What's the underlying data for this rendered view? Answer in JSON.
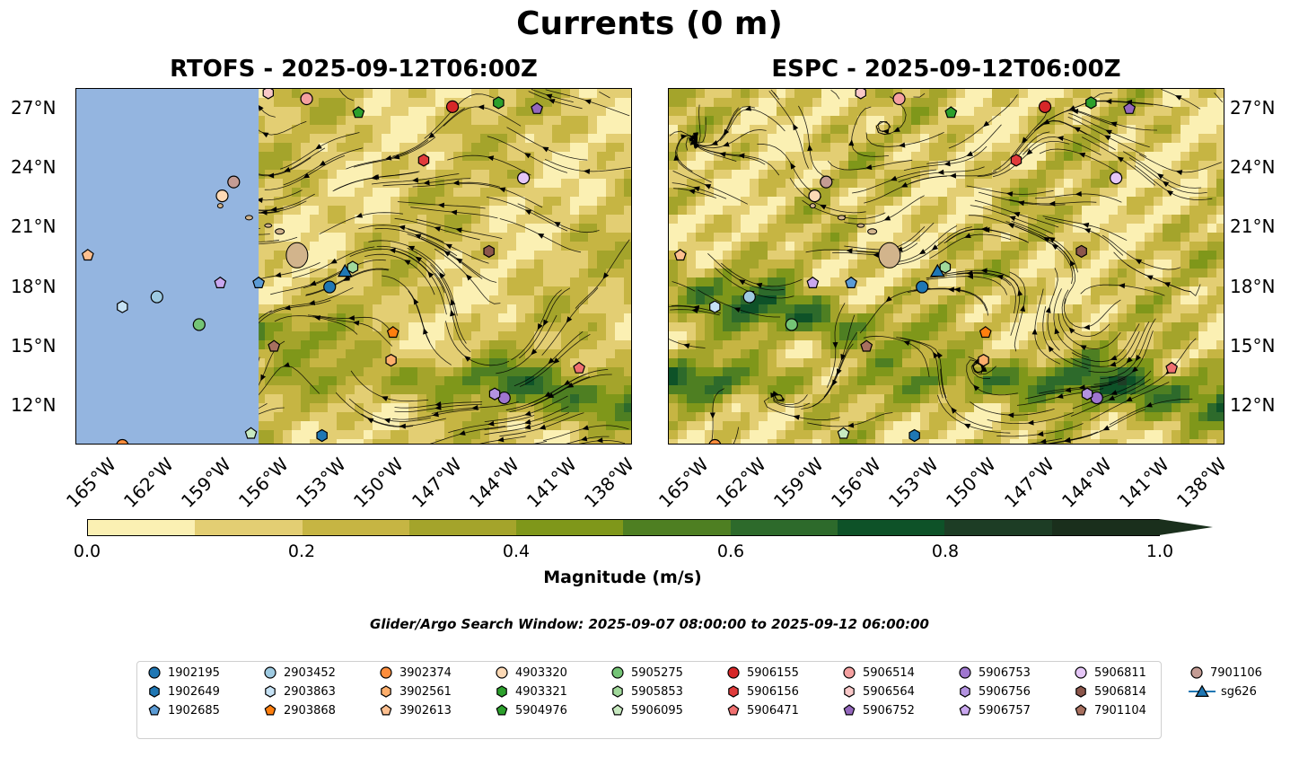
{
  "figure": {
    "suptitle": "Currents (0 m)",
    "window_text": "Glider/Argo Search Window: 2025-09-07 08:00:00 to 2025-09-12 06:00:00"
  },
  "chart_data": [
    {
      "type": "heatmap",
      "title": "RTOFS - 2025-09-12T06:00Z",
      "variable": "Current magnitude with streamlines",
      "lon_range": [
        -167,
        -138
      ],
      "lat_range": [
        10,
        28
      ],
      "xticks": [
        "165°W",
        "162°W",
        "159°W",
        "156°W",
        "153°W",
        "150°W",
        "147°W",
        "144°W",
        "141°W",
        "138°W"
      ],
      "yticks": [
        "27°N",
        "24°N",
        "21°N",
        "18°N",
        "15°N",
        "12°N"
      ],
      "data_extent_west": -157.5
    },
    {
      "type": "heatmap",
      "title": "ESPC - 2025-09-12T06:00Z",
      "variable": "Current magnitude with streamlines",
      "lon_range": [
        -167,
        -138
      ],
      "lat_range": [
        10,
        28
      ],
      "xticks": [
        "165°W",
        "162°W",
        "159°W",
        "156°W",
        "153°W",
        "150°W",
        "147°W",
        "144°W",
        "141°W",
        "138°W"
      ],
      "yticks": [
        "27°N",
        "24°N",
        "21°N",
        "18°N",
        "15°N",
        "12°N"
      ]
    }
  ],
  "colorbar": {
    "label": "Magnitude (m/s)",
    "ticks": [
      "0.0",
      "0.2",
      "0.4",
      "0.6",
      "0.8",
      "1.0"
    ],
    "colors": [
      "#fbf0b3",
      "#e3ce73",
      "#c6b543",
      "#a4a42b",
      "#7f971a",
      "#4e7f22",
      "#2d6a2b",
      "#0e5228",
      "#1d3d25",
      "#1a2f1c"
    ],
    "extend": "max"
  },
  "platforms": [
    {
      "id": "1902195",
      "marker": "circle",
      "color": "#1f77b4",
      "lon": -153.8,
      "lat": 18.0
    },
    {
      "id": "1902649",
      "marker": "hexagon",
      "color": "#1f77b4",
      "lon": -154.2,
      "lat": 10.5
    },
    {
      "id": "1902685",
      "marker": "pentagon",
      "color": "#5b9bd5",
      "lon": -157.5,
      "lat": 18.2
    },
    {
      "id": "2903452",
      "marker": "circle",
      "color": "#9ecae1",
      "lon": -162.8,
      "lat": 17.5
    },
    {
      "id": "2903863",
      "marker": "hexagon",
      "color": "#c6e2f5",
      "lon": -164.6,
      "lat": 17.0
    },
    {
      "id": "2903868",
      "marker": "pentagon",
      "color": "#ff7f0e",
      "lon": -150.5,
      "lat": 15.7
    },
    {
      "id": "3902374",
      "marker": "circle",
      "color": "#fd8d3c",
      "lon": -164.6,
      "lat": 10.0
    },
    {
      "id": "3902561",
      "marker": "hexagon",
      "color": "#fdae6b",
      "lon": -150.6,
      "lat": 14.3
    },
    {
      "id": "3902613",
      "marker": "pentagon",
      "color": "#fdbf8f",
      "lon": -166.4,
      "lat": 19.6
    },
    {
      "id": "4903320",
      "marker": "circle",
      "color": "#fdd9b5",
      "lon": -159.4,
      "lat": 22.6
    },
    {
      "id": "4903321",
      "marker": "hexagon",
      "color": "#2ca02c",
      "lon": -145.0,
      "lat": 27.3
    },
    {
      "id": "5904976",
      "marker": "pentagon",
      "color": "#2ca02c",
      "lon": -152.3,
      "lat": 26.8
    },
    {
      "id": "5905275",
      "marker": "circle",
      "color": "#74c476",
      "lon": -160.6,
      "lat": 16.1
    },
    {
      "id": "5905853",
      "marker": "hexagon",
      "color": "#a1d99b",
      "lon": -152.6,
      "lat": 19.0
    },
    {
      "id": "5906095",
      "marker": "pentagon",
      "color": "#c7e9c0",
      "lon": -157.9,
      "lat": 10.6
    },
    {
      "id": "5906155",
      "marker": "circle",
      "color": "#d62728",
      "lon": -147.4,
      "lat": 27.1
    },
    {
      "id": "5906156",
      "marker": "hexagon",
      "color": "#e03b3b",
      "lon": -148.9,
      "lat": 24.4
    },
    {
      "id": "5906471",
      "marker": "pentagon",
      "color": "#f07070",
      "lon": -140.8,
      "lat": 13.9
    },
    {
      "id": "5906514",
      "marker": "circle",
      "color": "#f4a0a0",
      "lon": -155.0,
      "lat": 27.5
    },
    {
      "id": "5906564",
      "marker": "hexagon",
      "color": "#f9c8c8",
      "lon": -157.0,
      "lat": 27.8
    },
    {
      "id": "5906752",
      "marker": "pentagon",
      "color": "#9467bd",
      "lon": -143.0,
      "lat": 27.0
    },
    {
      "id": "5906753",
      "marker": "circle",
      "color": "#9f76cf",
      "lon": -144.7,
      "lat": 12.4
    },
    {
      "id": "5906756",
      "marker": "hexagon",
      "color": "#b392e0",
      "lon": -145.2,
      "lat": 12.6
    },
    {
      "id": "5906757",
      "marker": "pentagon",
      "color": "#c9a7ef",
      "lon": -159.5,
      "lat": 18.2
    },
    {
      "id": "5906811",
      "marker": "circle",
      "color": "#e5c6f7",
      "lon": -143.7,
      "lat": 23.5
    },
    {
      "id": "5906814",
      "marker": "hexagon",
      "color": "#8c564b",
      "lon": -145.5,
      "lat": 19.8
    },
    {
      "id": "7901104",
      "marker": "pentagon",
      "color": "#a8705f",
      "lon": -156.7,
      "lat": 15.0
    },
    {
      "id": "7901106",
      "marker": "circle",
      "color": "#c49c94",
      "lon": -158.8,
      "lat": 23.3
    },
    {
      "id": "sg626",
      "marker": "triangle",
      "color": "#1f77b4",
      "lon": -153.0,
      "lat": 18.8
    }
  ]
}
